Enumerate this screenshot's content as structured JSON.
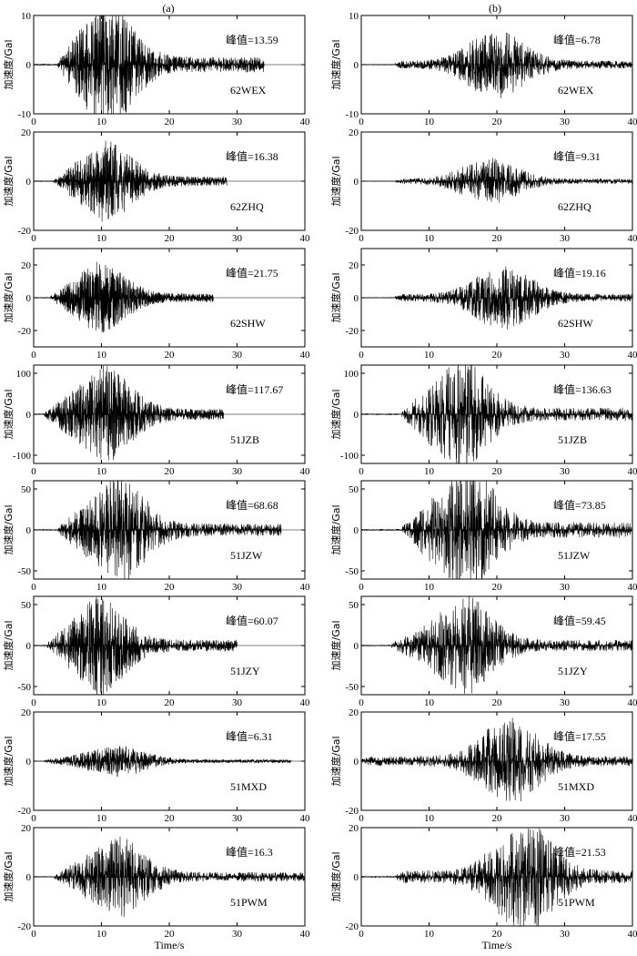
{
  "columns": [
    {
      "label": "(a)"
    },
    {
      "label": "(b)"
    }
  ],
  "chart_data": [
    {
      "type": "line",
      "column": "(a)",
      "station": "62WEX",
      "peak_label": "峰值=13.59",
      "peak": 13.59,
      "duration": 34,
      "onset": 3.5,
      "peak_time": 10,
      "sharp": 2.2,
      "ylim": [
        -10,
        10
      ],
      "yticks": [
        "-10",
        "0",
        "10"
      ],
      "xlim": [
        0,
        40
      ],
      "xticks": [
        "0",
        "10",
        "20",
        "30",
        "40"
      ],
      "ylabel": "加速度/Gal",
      "xlabel": ""
    },
    {
      "type": "line",
      "column": "(b)",
      "station": "62WEX",
      "peak_label": "峰值=6.78",
      "peak": 6.78,
      "duration": 40,
      "onset": 5,
      "peak_time": 20,
      "sharp": 1.6,
      "ylim": [
        -10,
        10
      ],
      "yticks": [
        "-10",
        "0",
        "10"
      ],
      "xlim": [
        0,
        40
      ],
      "xticks": [
        "0",
        "10",
        "20",
        "30",
        "40"
      ],
      "ylabel": "加速度/Gal",
      "xlabel": ""
    },
    {
      "type": "line",
      "column": "(a)",
      "station": "62ZHQ",
      "peak_label": "峰值=16.38",
      "peak": 16.38,
      "duration": 28.5,
      "onset": 3,
      "peak_time": 10,
      "sharp": 2.0,
      "ylim": [
        -20,
        20
      ],
      "yticks": [
        "-20",
        "0",
        "20"
      ],
      "xlim": [
        0,
        40
      ],
      "xticks": [
        "0",
        "10",
        "20",
        "30",
        "40"
      ],
      "ylabel": "加速度/Gal",
      "xlabel": ""
    },
    {
      "type": "line",
      "column": "(b)",
      "station": "62ZHQ",
      "peak_label": "峰值=9.31",
      "peak": 9.31,
      "duration": 40,
      "onset": 5,
      "peak_time": 19,
      "sharp": 2.0,
      "ylim": [
        -20,
        20
      ],
      "yticks": [
        "-20",
        "0",
        "20"
      ],
      "xlim": [
        0,
        40
      ],
      "xticks": [
        "0",
        "10",
        "20",
        "30",
        "40"
      ],
      "ylabel": "加速度/Gal",
      "xlabel": ""
    },
    {
      "type": "line",
      "column": "(a)",
      "station": "62SHW",
      "peak_label": "峰值=21.75",
      "peak": 21.75,
      "duration": 26.5,
      "onset": 2.5,
      "peak_time": 9,
      "sharp": 1.6,
      "ylim": [
        -30,
        30
      ],
      "yticks": [
        "-20",
        "0",
        "20"
      ],
      "xlim": [
        0,
        40
      ],
      "xticks": [
        "0",
        "10",
        "20",
        "30",
        "40"
      ],
      "ylabel": "加速度/Gal",
      "xlabel": ""
    },
    {
      "type": "line",
      "column": "(b)",
      "station": "62SHW",
      "peak_label": "峰值=19.16",
      "peak": 19.16,
      "duration": 40,
      "onset": 5,
      "peak_time": 21,
      "sharp": 1.6,
      "ylim": [
        -30,
        30
      ],
      "yticks": [
        "-20",
        "0",
        "20"
      ],
      "xlim": [
        0,
        40
      ],
      "xticks": [
        "0",
        "10",
        "20",
        "30",
        "40"
      ],
      "ylabel": "加速度/Gal",
      "xlabel": ""
    },
    {
      "type": "line",
      "column": "(a)",
      "station": "51JZB",
      "peak_label": "峰值=117.67",
      "peak": 117.67,
      "duration": 28,
      "onset": 1.5,
      "peak_time": 10,
      "sharp": 2.0,
      "ylim": [
        -120,
        120
      ],
      "yticks": [
        "-100",
        "0",
        "100"
      ],
      "xlim": [
        0,
        40
      ],
      "xticks": [
        "0",
        "10",
        "20",
        "30",
        "40"
      ],
      "ylabel": "加速度/Gal",
      "xlabel": ""
    },
    {
      "type": "line",
      "column": "(b)",
      "station": "51JZB",
      "peak_label": "峰值=136.63",
      "peak": 136.63,
      "duration": 40,
      "onset": 6,
      "peak_time": 14,
      "sharp": 2.4,
      "ylim": [
        -120,
        120
      ],
      "yticks": [
        "-100",
        "0",
        "100"
      ],
      "xlim": [
        0,
        40
      ],
      "xticks": [
        "0",
        "10",
        "20",
        "30",
        "40"
      ],
      "ylabel": "加速度/Gal",
      "xlabel": ""
    },
    {
      "type": "line",
      "column": "(a)",
      "station": "51JZW",
      "peak_label": "峰值=68.68",
      "peak": 68.68,
      "duration": 36.5,
      "onset": 3.5,
      "peak_time": 12,
      "sharp": 2.2,
      "ylim": [
        -60,
        60
      ],
      "yticks": [
        "-50",
        "0",
        "50"
      ],
      "xlim": [
        0,
        40
      ],
      "xticks": [
        "0",
        "10",
        "20",
        "30",
        "40"
      ],
      "ylabel": "加速度/Gal",
      "xlabel": ""
    },
    {
      "type": "line",
      "column": "(b)",
      "station": "51JZW",
      "peak_label": "峰值=73.85",
      "peak": 73.85,
      "duration": 40,
      "onset": 6,
      "peak_time": 15,
      "sharp": 2.2,
      "ylim": [
        -60,
        60
      ],
      "yticks": [
        "-50",
        "0",
        "50"
      ],
      "xlim": [
        0,
        40
      ],
      "xticks": [
        "0",
        "10",
        "20",
        "30",
        "40"
      ],
      "ylabel": "加速度/Gal",
      "xlabel": ""
    },
    {
      "type": "line",
      "column": "(a)",
      "station": "51JZY",
      "peak_label": "峰值=60.07",
      "peak": 60.07,
      "duration": 30,
      "onset": 2,
      "peak_time": 9,
      "sharp": 2.2,
      "ylim": [
        -60,
        60
      ],
      "yticks": [
        "-50",
        "0",
        "50"
      ],
      "xlim": [
        0,
        40
      ],
      "xticks": [
        "0",
        "10",
        "20",
        "30",
        "40"
      ],
      "ylabel": "加速度/Gal",
      "xlabel": ""
    },
    {
      "type": "line",
      "column": "(b)",
      "station": "51JZY",
      "peak_label": "峰值=59.45",
      "peak": 59.45,
      "duration": 40,
      "onset": 4.5,
      "peak_time": 15,
      "sharp": 2.0,
      "ylim": [
        -60,
        60
      ],
      "yticks": [
        "-50",
        "0",
        "50"
      ],
      "xlim": [
        0,
        40
      ],
      "xticks": [
        "0",
        "10",
        "20",
        "30",
        "40"
      ],
      "ylabel": "加速度/Gal",
      "xlabel": ""
    },
    {
      "type": "line",
      "column": "(a)",
      "station": "51MXD",
      "peak_label": "峰值=6.31",
      "peak": 6.31,
      "duration": 38,
      "onset": 1.5,
      "peak_time": 12,
      "sharp": 1.6,
      "ylim": [
        -20,
        20
      ],
      "yticks": [
        "-20",
        "0",
        "20"
      ],
      "xlim": [
        0,
        40
      ],
      "xticks": [
        "0",
        "10",
        "20",
        "30",
        "40"
      ],
      "ylabel": "加速度/Gal",
      "xlabel": ""
    },
    {
      "type": "line",
      "column": "(b)",
      "station": "51MXD",
      "peak_label": "峰值=17.55",
      "peak": 17.55,
      "duration": 40,
      "onset": 0,
      "peak_time": 22,
      "sharp": 2.0,
      "ylim": [
        -20,
        20
      ],
      "yticks": [
        "-20",
        "0",
        "20"
      ],
      "xlim": [
        0,
        40
      ],
      "xticks": [
        "0",
        "10",
        "20",
        "30",
        "40"
      ],
      "ylabel": "加速度/Gal",
      "xlabel": ""
    },
    {
      "type": "line",
      "column": "(a)",
      "station": "51PWM",
      "peak_label": "峰值=16.3",
      "peak": 16.3,
      "duration": 40,
      "onset": 3,
      "peak_time": 12,
      "sharp": 2.0,
      "ylim": [
        -20,
        20
      ],
      "yticks": [
        "-20",
        "0",
        "20"
      ],
      "xlim": [
        0,
        40
      ],
      "xticks": [
        "0",
        "10",
        "20",
        "30",
        "40"
      ],
      "ylabel": "加速度/Gal",
      "xlabel": "Time/s"
    },
    {
      "type": "line",
      "column": "(b)",
      "station": "51PWM",
      "peak_label": "峰值=21.53",
      "peak": 21.53,
      "duration": 40,
      "onset": 5,
      "peak_time": 24,
      "sharp": 2.0,
      "ylim": [
        -20,
        20
      ],
      "yticks": [
        "-20",
        "0",
        "20"
      ],
      "xlim": [
        0,
        40
      ],
      "xticks": [
        "0",
        "10",
        "20",
        "30",
        "40"
      ],
      "ylabel": "加速度/Gal",
      "xlabel": "Time/s"
    }
  ]
}
